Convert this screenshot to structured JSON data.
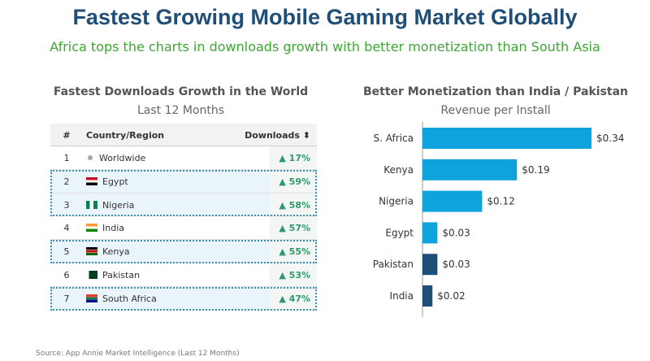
{
  "title": "Fastest Growing Mobile Gaming Market Globally",
  "subtitle": "Africa tops the charts in downloads growth with better monetization than South Asia",
  "left_panel": {
    "title": "Fastest Downloads Growth in the World",
    "subtitle": "Last 12 Months",
    "headers": {
      "rank": "#",
      "country": "Country/Region",
      "downloads": "Downloads ⬍"
    },
    "rows": [
      {
        "rank": "1",
        "country": "Worldwide",
        "growth": "▲ 17%",
        "highlight": false,
        "flag": "globe-icon"
      },
      {
        "rank": "2",
        "country": "Egypt",
        "growth": "▲ 59%",
        "highlight": true,
        "flag": "egypt-flag-icon"
      },
      {
        "rank": "3",
        "country": "Nigeria",
        "growth": "▲ 58%",
        "highlight": true,
        "flag": "nigeria-flag-icon"
      },
      {
        "rank": "4",
        "country": "India",
        "growth": "▲ 57%",
        "highlight": false,
        "flag": "india-flag-icon"
      },
      {
        "rank": "5",
        "country": "Kenya",
        "growth": "▲ 55%",
        "highlight": true,
        "flag": "kenya-flag-icon"
      },
      {
        "rank": "6",
        "country": "Pakistan",
        "growth": "▲ 53%",
        "highlight": false,
        "flag": "pakistan-flag-icon"
      },
      {
        "rank": "7",
        "country": "South Africa",
        "growth": "▲ 47%",
        "highlight": true,
        "flag": "south-africa-flag-icon"
      }
    ]
  },
  "right_panel": {
    "title": "Better Monetization than India / Pakistan",
    "subtitle": "Revenue per Install"
  },
  "chart_data": {
    "type": "bar",
    "orientation": "horizontal",
    "title": "Better Monetization than India / Pakistan",
    "subtitle": "Revenue per Install",
    "categories": [
      "S. Africa",
      "Kenya",
      "Nigeria",
      "Egypt",
      "Pakistan",
      "India"
    ],
    "values": [
      0.34,
      0.19,
      0.12,
      0.03,
      0.03,
      0.02
    ],
    "value_labels": [
      "$0.34",
      "$0.19",
      "$0.12",
      "$0.03",
      "$0.03",
      "$0.02"
    ],
    "bar_colors": [
      "#0ea3dc",
      "#0ea3dc",
      "#0ea3dc",
      "#0ea3dc",
      "#1f4e79",
      "#1f4e79"
    ],
    "xlim": [
      0,
      0.34
    ],
    "grid": false,
    "legend": "none"
  },
  "source": "Source: App Annie Market Intelligence (Last 12 Months)"
}
